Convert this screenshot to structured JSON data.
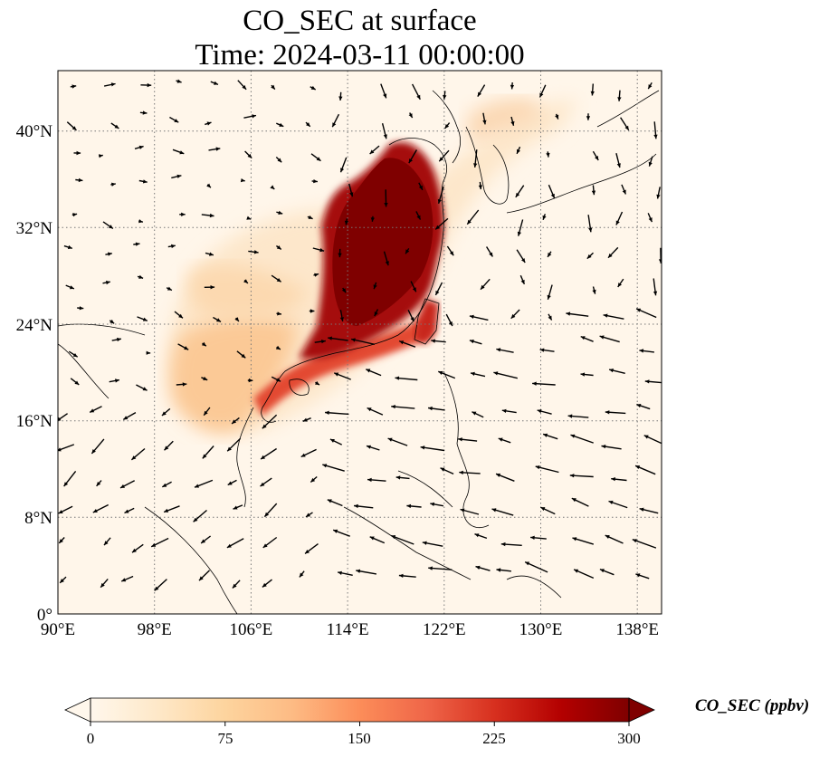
{
  "title": {
    "line1": "CO_SEC at surface",
    "line2": "Time: 2024-03-11 00:00:00"
  },
  "map": {
    "lon_range": [
      90,
      140
    ],
    "lat_range": [
      0,
      45
    ],
    "lon_ticks": [
      "90°E",
      "98°E",
      "106°E",
      "114°E",
      "122°E",
      "130°E",
      "138°E"
    ],
    "lat_ticks": [
      "0°",
      "8°N",
      "16°N",
      "24°N",
      "32°N",
      "40°N"
    ],
    "gridlines": "dotted",
    "overlay": "wind vectors (black arrows)",
    "field": "CO_SEC concentration; maximum (>300 ppbv) over eastern China and the Yellow Sea, plume extending over South China, northern Indochina and Taiwan"
  },
  "colorbar": {
    "label": "CO_SEC (ppbv)",
    "ticks": [
      "0",
      "75",
      "150",
      "225",
      "300"
    ],
    "extend": "both",
    "colormap": "OrRd",
    "colors": [
      "#fff7ec",
      "#fee8c8",
      "#fdd49e",
      "#fdbb84",
      "#fc8d59",
      "#ef6548",
      "#d7301f",
      "#b30000",
      "#7f0000"
    ]
  }
}
